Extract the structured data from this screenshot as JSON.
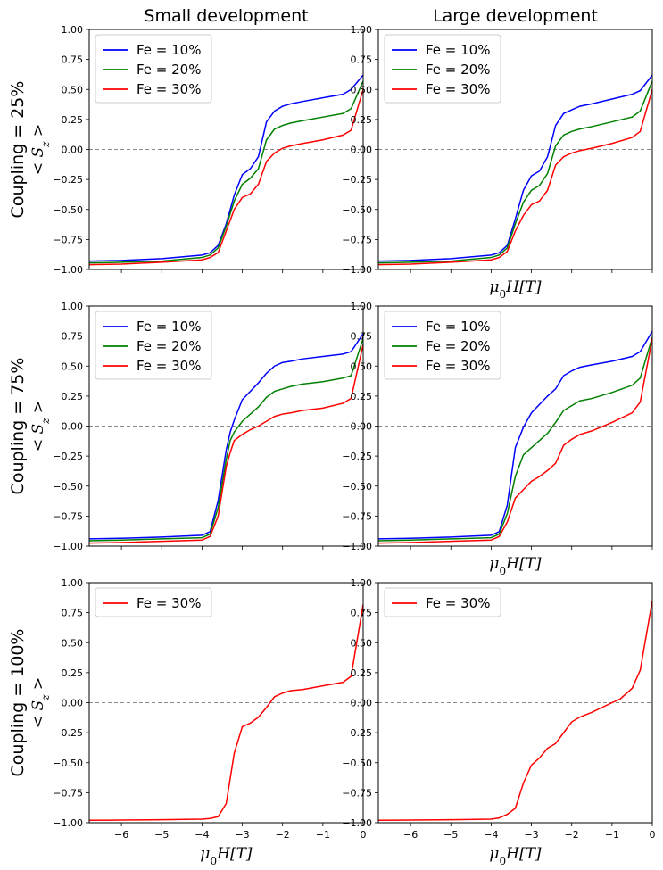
{
  "chart_data": {
    "type": "line",
    "column_titles": [
      "Small development",
      "Large development"
    ],
    "row_labels": [
      "Coupling = 25%",
      "Coupling = 75%",
      "Coupling = 100%"
    ],
    "ylabel": "< S_z >",
    "xlabel": "μ0H[T]",
    "xlim": [
      -6.8,
      0
    ],
    "ylim": [
      -1.0,
      1.0
    ],
    "xticks": [
      "−6",
      "−5",
      "−4",
      "−3",
      "−2",
      "−1",
      "0"
    ],
    "xtick_values": [
      -6,
      -5,
      -4,
      -3,
      -2,
      -1,
      0
    ],
    "yticks": [
      "−1.00",
      "−0.75",
      "−0.50",
      "−0.25",
      "0.00",
      "0.25",
      "0.50",
      "0.75",
      "1.00"
    ],
    "ytick_values": [
      -1.0,
      -0.75,
      -0.5,
      -0.25,
      0.0,
      0.25,
      0.5,
      0.75,
      1.0
    ],
    "reference_line": {
      "y": 0.0,
      "style": "dashed",
      "color": "#888888"
    },
    "colors": {
      "Fe = 10%": "#0000ff",
      "Fe = 20%": "#008000",
      "Fe = 30%": "#ff0000"
    },
    "panels": [
      {
        "row": 0,
        "col": 0,
        "show_xlabel": false,
        "show_xticklabels": false,
        "legend": "top-left",
        "series": [
          {
            "name": "Fe = 10%",
            "x": [
              -6.8,
              -6,
              -5,
              -4,
              -3.8,
              -3.6,
              -3.4,
              -3.2,
              -3.0,
              -2.8,
              -2.6,
              -2.4,
              -2.2,
              -2.0,
              -1.8,
              -1.5,
              -1.0,
              -0.5,
              -0.3,
              0
            ],
            "y": [
              -0.93,
              -0.925,
              -0.91,
              -0.88,
              -0.86,
              -0.8,
              -0.62,
              -0.38,
              -0.21,
              -0.16,
              -0.06,
              0.23,
              0.32,
              0.36,
              0.38,
              0.4,
              0.43,
              0.46,
              0.5,
              0.62
            ]
          },
          {
            "name": "Fe = 20%",
            "x": [
              -6.8,
              -6,
              -5,
              -4,
              -3.8,
              -3.6,
              -3.4,
              -3.2,
              -3.0,
              -2.8,
              -2.6,
              -2.4,
              -2.2,
              -2.0,
              -1.8,
              -1.5,
              -1.0,
              -0.5,
              -0.3,
              0
            ],
            "y": [
              -0.945,
              -0.94,
              -0.93,
              -0.9,
              -0.88,
              -0.82,
              -0.64,
              -0.43,
              -0.29,
              -0.24,
              -0.16,
              0.08,
              0.17,
              0.2,
              0.22,
              0.24,
              0.27,
              0.3,
              0.34,
              0.57
            ]
          },
          {
            "name": "Fe = 30%",
            "x": [
              -6.8,
              -6,
              -5,
              -4,
              -3.8,
              -3.6,
              -3.4,
              -3.2,
              -3.0,
              -2.8,
              -2.6,
              -2.4,
              -2.2,
              -2.0,
              -1.8,
              -1.5,
              -1.0,
              -0.5,
              -0.3,
              0
            ],
            "y": [
              -0.96,
              -0.955,
              -0.94,
              -0.92,
              -0.9,
              -0.86,
              -0.68,
              -0.5,
              -0.4,
              -0.37,
              -0.29,
              -0.1,
              -0.03,
              0.01,
              0.03,
              0.05,
              0.08,
              0.12,
              0.16,
              0.5
            ]
          }
        ]
      },
      {
        "row": 0,
        "col": 1,
        "show_xlabel": true,
        "show_xticklabels": false,
        "legend": "top-left",
        "series": [
          {
            "name": "Fe = 10%",
            "x": [
              -6.8,
              -6,
              -5,
              -4,
              -3.8,
              -3.6,
              -3.4,
              -3.2,
              -3.0,
              -2.8,
              -2.6,
              -2.4,
              -2.2,
              -2.0,
              -1.8,
              -1.5,
              -1.0,
              -0.5,
              -0.3,
              0
            ],
            "y": [
              -0.93,
              -0.925,
              -0.91,
              -0.88,
              -0.86,
              -0.8,
              -0.58,
              -0.34,
              -0.22,
              -0.18,
              -0.06,
              0.2,
              0.3,
              0.33,
              0.36,
              0.38,
              0.42,
              0.46,
              0.49,
              0.62
            ]
          },
          {
            "name": "Fe = 20%",
            "x": [
              -6.8,
              -6,
              -5,
              -4,
              -3.8,
              -3.6,
              -3.4,
              -3.2,
              -3.0,
              -2.8,
              -2.6,
              -2.4,
              -2.2,
              -2.0,
              -1.8,
              -1.5,
              -1.0,
              -0.5,
              -0.3,
              0
            ],
            "y": [
              -0.945,
              -0.94,
              -0.93,
              -0.9,
              -0.88,
              -0.82,
              -0.62,
              -0.44,
              -0.34,
              -0.3,
              -0.2,
              0.03,
              0.12,
              0.15,
              0.17,
              0.19,
              0.23,
              0.27,
              0.32,
              0.57
            ]
          },
          {
            "name": "Fe = 30%",
            "x": [
              -6.8,
              -6,
              -5,
              -4,
              -3.8,
              -3.6,
              -3.4,
              -3.2,
              -3.0,
              -2.8,
              -2.6,
              -2.4,
              -2.2,
              -2.0,
              -1.8,
              -1.5,
              -1.0,
              -0.5,
              -0.3,
              0
            ],
            "y": [
              -0.96,
              -0.955,
              -0.94,
              -0.92,
              -0.9,
              -0.85,
              -0.68,
              -0.55,
              -0.46,
              -0.43,
              -0.34,
              -0.13,
              -0.06,
              -0.03,
              -0.01,
              0.01,
              0.05,
              0.1,
              0.15,
              0.5
            ]
          }
        ]
      },
      {
        "row": 1,
        "col": 0,
        "show_xlabel": false,
        "show_xticklabels": false,
        "legend": "top-left",
        "series": [
          {
            "name": "Fe = 10%",
            "x": [
              -6.8,
              -6,
              -5,
              -4,
              -3.8,
              -3.6,
              -3.4,
              -3.3,
              -3.2,
              -3.0,
              -2.8,
              -2.6,
              -2.4,
              -2.2,
              -2.0,
              -1.8,
              -1.5,
              -1.0,
              -0.5,
              -0.3,
              0
            ],
            "y": [
              -0.94,
              -0.935,
              -0.925,
              -0.91,
              -0.88,
              -0.62,
              -0.2,
              -0.05,
              0.05,
              0.22,
              0.29,
              0.36,
              0.44,
              0.5,
              0.53,
              0.54,
              0.56,
              0.58,
              0.6,
              0.62,
              0.77
            ]
          },
          {
            "name": "Fe = 20%",
            "x": [
              -6.8,
              -6,
              -5,
              -4,
              -3.8,
              -3.6,
              -3.4,
              -3.3,
              -3.2,
              -3.0,
              -2.8,
              -2.6,
              -2.4,
              -2.2,
              -2.0,
              -1.8,
              -1.5,
              -1.0,
              -0.5,
              -0.3,
              0
            ],
            "y": [
              -0.955,
              -0.95,
              -0.94,
              -0.93,
              -0.9,
              -0.68,
              -0.28,
              -0.12,
              -0.05,
              0.04,
              0.1,
              0.16,
              0.24,
              0.29,
              0.31,
              0.33,
              0.35,
              0.37,
              0.4,
              0.42,
              0.73
            ]
          },
          {
            "name": "Fe = 30%",
            "x": [
              -6.8,
              -6,
              -5,
              -4,
              -3.8,
              -3.6,
              -3.4,
              -3.3,
              -3.2,
              -3.0,
              -2.8,
              -2.6,
              -2.4,
              -2.2,
              -2.0,
              -1.8,
              -1.5,
              -1.0,
              -0.5,
              -0.3,
              0
            ],
            "y": [
              -0.975,
              -0.97,
              -0.96,
              -0.95,
              -0.92,
              -0.75,
              -0.34,
              -0.22,
              -0.12,
              -0.07,
              -0.03,
              0.0,
              0.04,
              0.08,
              0.1,
              0.11,
              0.13,
              0.15,
              0.19,
              0.23,
              0.68
            ]
          }
        ]
      },
      {
        "row": 1,
        "col": 1,
        "show_xlabel": true,
        "show_xticklabels": false,
        "legend": "top-left",
        "series": [
          {
            "name": "Fe = 10%",
            "x": [
              -6.8,
              -6,
              -5,
              -4,
              -3.8,
              -3.6,
              -3.4,
              -3.2,
              -3.0,
              -2.8,
              -2.6,
              -2.4,
              -2.2,
              -2.0,
              -1.8,
              -1.5,
              -1.0,
              -0.5,
              -0.3,
              0
            ],
            "y": [
              -0.94,
              -0.935,
              -0.925,
              -0.91,
              -0.88,
              -0.66,
              -0.18,
              -0.01,
              0.11,
              0.18,
              0.25,
              0.31,
              0.42,
              0.46,
              0.49,
              0.51,
              0.54,
              0.58,
              0.62,
              0.79
            ]
          },
          {
            "name": "Fe = 20%",
            "x": [
              -6.8,
              -6,
              -5,
              -4,
              -3.8,
              -3.6,
              -3.4,
              -3.2,
              -3.0,
              -2.8,
              -2.6,
              -2.4,
              -2.2,
              -2.0,
              -1.8,
              -1.5,
              -1.0,
              -0.5,
              -0.3,
              0
            ],
            "y": [
              -0.955,
              -0.95,
              -0.94,
              -0.93,
              -0.9,
              -0.73,
              -0.42,
              -0.24,
              -0.18,
              -0.12,
              -0.06,
              0.03,
              0.13,
              0.17,
              0.21,
              0.23,
              0.28,
              0.34,
              0.4,
              0.74
            ]
          },
          {
            "name": "Fe = 30%",
            "x": [
              -6.8,
              -6,
              -5,
              -4,
              -3.8,
              -3.6,
              -3.4,
              -3.2,
              -3.0,
              -2.8,
              -2.6,
              -2.4,
              -2.2,
              -2.0,
              -1.8,
              -1.5,
              -1.0,
              -0.5,
              -0.3,
              0
            ],
            "y": [
              -0.975,
              -0.97,
              -0.96,
              -0.95,
              -0.92,
              -0.8,
              -0.6,
              -0.53,
              -0.46,
              -0.42,
              -0.37,
              -0.31,
              -0.16,
              -0.11,
              -0.07,
              -0.04,
              0.03,
              0.11,
              0.2,
              0.73
            ]
          }
        ]
      },
      {
        "row": 2,
        "col": 0,
        "show_xlabel": true,
        "show_xticklabels": true,
        "legend": "top-left",
        "series": [
          {
            "name": "Fe = 30%",
            "x": [
              -6.8,
              -6,
              -5,
              -4,
              -3.8,
              -3.6,
              -3.4,
              -3.2,
              -3.0,
              -2.8,
              -2.6,
              -2.4,
              -2.2,
              -2.0,
              -1.8,
              -1.5,
              -1.0,
              -0.5,
              -0.3,
              0
            ],
            "y": [
              -0.98,
              -0.978,
              -0.975,
              -0.97,
              -0.965,
              -0.95,
              -0.84,
              -0.42,
              -0.2,
              -0.17,
              -0.12,
              -0.04,
              0.05,
              0.08,
              0.1,
              0.11,
              0.14,
              0.17,
              0.22,
              0.82
            ]
          }
        ]
      },
      {
        "row": 2,
        "col": 1,
        "show_xlabel": true,
        "show_xticklabels": true,
        "legend": "top-left",
        "series": [
          {
            "name": "Fe = 30%",
            "x": [
              -6.8,
              -6,
              -5,
              -4,
              -3.8,
              -3.6,
              -3.4,
              -3.2,
              -3.0,
              -2.8,
              -2.6,
              -2.4,
              -2.2,
              -2.0,
              -1.8,
              -1.5,
              -1.0,
              -0.8,
              -0.5,
              -0.3,
              0
            ],
            "y": [
              -0.98,
              -0.978,
              -0.975,
              -0.97,
              -0.96,
              -0.93,
              -0.88,
              -0.67,
              -0.52,
              -0.46,
              -0.38,
              -0.34,
              -0.25,
              -0.16,
              -0.12,
              -0.08,
              0.0,
              0.03,
              0.12,
              0.27,
              0.85
            ]
          }
        ]
      }
    ]
  }
}
